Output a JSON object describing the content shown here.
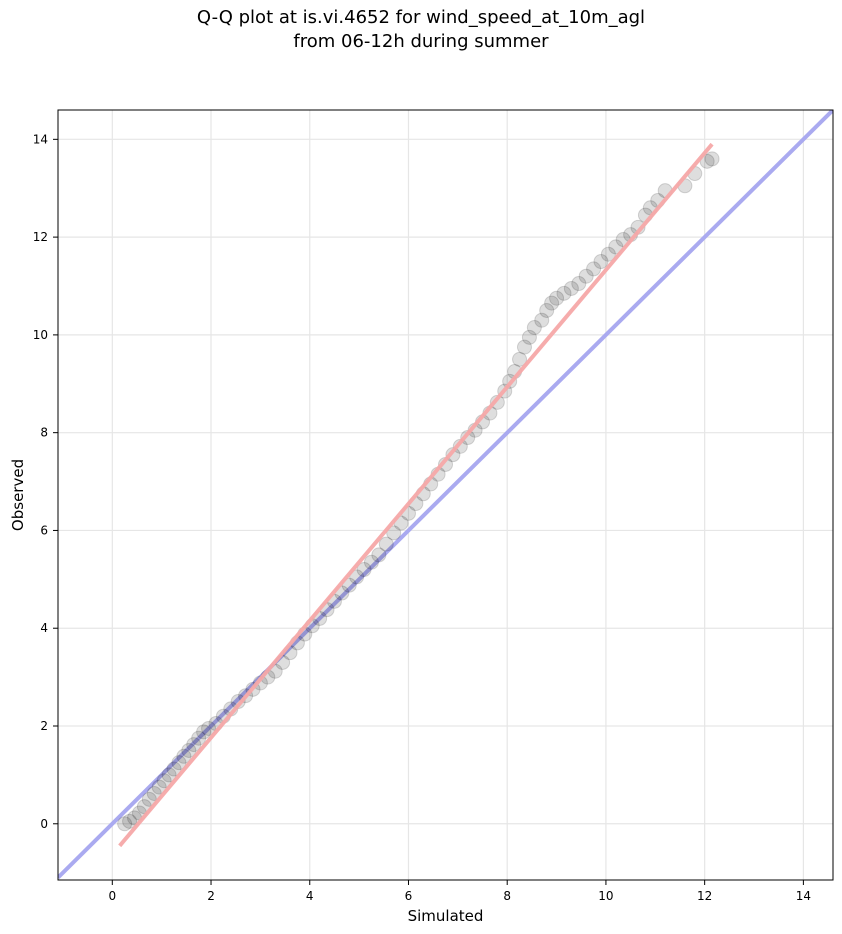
{
  "chart_data": {
    "type": "scatter",
    "title_lines": [
      "Q-Q plot at is.vi.4652 for wind_speed_at_10m_agl",
      "from 06-12h during summer"
    ],
    "xlabel": "Simulated",
    "ylabel": "Observed",
    "xlim": [
      -1.1,
      14.6
    ],
    "ylim": [
      -1.15,
      14.6
    ],
    "xticks": [
      0,
      2,
      4,
      6,
      8,
      10,
      12,
      14
    ],
    "yticks": [
      0,
      2,
      4,
      6,
      8,
      10,
      12,
      14
    ],
    "xtick_labels": [
      "0",
      "2",
      "4",
      "6",
      "8",
      "10",
      "12",
      "14"
    ],
    "ytick_labels": [
      "0",
      "2",
      "4",
      "6",
      "8",
      "10",
      "12",
      "14"
    ],
    "grid": true,
    "reference_line": {
      "color": "#aaaaf0",
      "points": [
        [
          -1.1,
          -1.1
        ],
        [
          14.6,
          14.6
        ]
      ]
    },
    "fit_line": {
      "color": "#f5a8a8",
      "points": [
        [
          0.15,
          -0.45
        ],
        [
          12.15,
          13.9
        ]
      ]
    },
    "points_color": "#000000",
    "points": [
      [
        0.25,
        0.0
      ],
      [
        0.35,
        0.05
      ],
      [
        0.45,
        0.12
      ],
      [
        0.55,
        0.22
      ],
      [
        0.65,
        0.35
      ],
      [
        0.75,
        0.5
      ],
      [
        0.85,
        0.62
      ],
      [
        0.95,
        0.75
      ],
      [
        1.05,
        0.88
      ],
      [
        1.15,
        1.0
      ],
      [
        1.25,
        1.12
      ],
      [
        1.35,
        1.25
      ],
      [
        1.45,
        1.38
      ],
      [
        1.55,
        1.5
      ],
      [
        1.65,
        1.62
      ],
      [
        1.75,
        1.75
      ],
      [
        1.85,
        1.88
      ],
      [
        1.95,
        1.95
      ],
      [
        2.1,
        2.05
      ],
      [
        2.25,
        2.2
      ],
      [
        2.4,
        2.35
      ],
      [
        2.55,
        2.5
      ],
      [
        2.7,
        2.62
      ],
      [
        2.85,
        2.75
      ],
      [
        3.0,
        2.88
      ],
      [
        3.15,
        3.0
      ],
      [
        3.3,
        3.12
      ],
      [
        3.45,
        3.3
      ],
      [
        3.6,
        3.5
      ],
      [
        3.75,
        3.7
      ],
      [
        3.9,
        3.88
      ],
      [
        4.05,
        4.05
      ],
      [
        4.2,
        4.2
      ],
      [
        4.35,
        4.38
      ],
      [
        4.5,
        4.55
      ],
      [
        4.65,
        4.72
      ],
      [
        4.8,
        4.88
      ],
      [
        4.95,
        5.05
      ],
      [
        5.1,
        5.2
      ],
      [
        5.25,
        5.35
      ],
      [
        5.4,
        5.5
      ],
      [
        5.55,
        5.72
      ],
      [
        5.7,
        5.95
      ],
      [
        5.85,
        6.15
      ],
      [
        6.0,
        6.35
      ],
      [
        6.15,
        6.55
      ],
      [
        6.3,
        6.75
      ],
      [
        6.45,
        6.95
      ],
      [
        6.6,
        7.15
      ],
      [
        6.75,
        7.35
      ],
      [
        6.9,
        7.55
      ],
      [
        7.05,
        7.72
      ],
      [
        7.2,
        7.9
      ],
      [
        7.35,
        8.05
      ],
      [
        7.5,
        8.22
      ],
      [
        7.65,
        8.4
      ],
      [
        7.8,
        8.62
      ],
      [
        7.95,
        8.85
      ],
      [
        8.05,
        9.05
      ],
      [
        8.15,
        9.25
      ],
      [
        8.25,
        9.5
      ],
      [
        8.35,
        9.75
      ],
      [
        8.45,
        9.95
      ],
      [
        8.55,
        10.15
      ],
      [
        8.7,
        10.3
      ],
      [
        8.8,
        10.5
      ],
      [
        8.9,
        10.65
      ],
      [
        9.0,
        10.75
      ],
      [
        9.15,
        10.85
      ],
      [
        9.3,
        10.95
      ],
      [
        9.45,
        11.05
      ],
      [
        9.6,
        11.2
      ],
      [
        9.75,
        11.35
      ],
      [
        9.9,
        11.5
      ],
      [
        10.05,
        11.65
      ],
      [
        10.2,
        11.8
      ],
      [
        10.35,
        11.95
      ],
      [
        10.5,
        12.05
      ],
      [
        10.65,
        12.2
      ],
      [
        10.8,
        12.45
      ],
      [
        10.9,
        12.6
      ],
      [
        11.05,
        12.75
      ],
      [
        11.2,
        12.95
      ],
      [
        11.6,
        13.05
      ],
      [
        11.8,
        13.3
      ],
      [
        12.05,
        13.55
      ],
      [
        12.15,
        13.6
      ]
    ]
  }
}
